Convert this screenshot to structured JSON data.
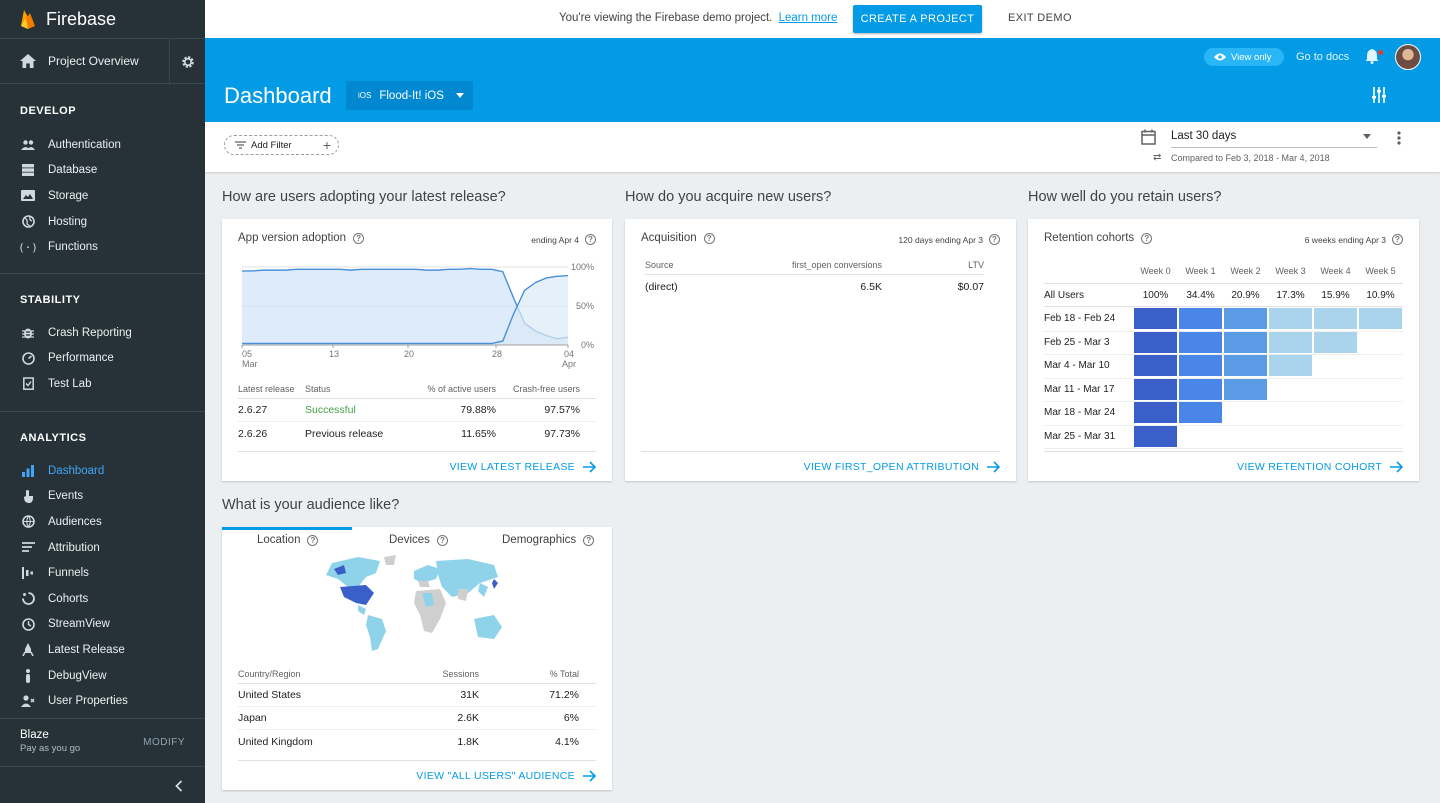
{
  "sidebar": {
    "brand": "Firebase",
    "project_overview": "Project Overview",
    "sections": {
      "develop": {
        "title": "DEVELOP",
        "items": [
          {
            "label": "Authentication",
            "icon": "people-icon"
          },
          {
            "label": "Database",
            "icon": "database-icon"
          },
          {
            "label": "Storage",
            "icon": "storage-icon"
          },
          {
            "label": "Hosting",
            "icon": "globe-icon"
          },
          {
            "label": "Functions",
            "icon": "functions-icon"
          }
        ]
      },
      "stability": {
        "title": "STABILITY",
        "items": [
          {
            "label": "Crash Reporting",
            "icon": "bug-icon"
          },
          {
            "label": "Performance",
            "icon": "gauge-icon"
          },
          {
            "label": "Test Lab",
            "icon": "checklist-icon"
          }
        ]
      },
      "analytics": {
        "title": "ANALYTICS",
        "items": [
          {
            "label": "Dashboard",
            "icon": "bar-chart-icon",
            "active": true
          },
          {
            "label": "Events",
            "icon": "touch-icon"
          },
          {
            "label": "Audiences",
            "icon": "globe-icon"
          },
          {
            "label": "Attribution",
            "icon": "attribution-icon"
          },
          {
            "label": "Funnels",
            "icon": "funnel-icon"
          },
          {
            "label": "Cohorts",
            "icon": "cohorts-icon"
          },
          {
            "label": "StreamView",
            "icon": "clock-icon"
          },
          {
            "label": "Latest Release",
            "icon": "release-icon"
          },
          {
            "label": "DebugView",
            "icon": "debug-icon"
          },
          {
            "label": "User Properties",
            "icon": "user-properties-icon"
          }
        ]
      }
    },
    "plan": {
      "name": "Blaze",
      "desc": "Pay as you go",
      "modify": "MODIFY"
    }
  },
  "banner": {
    "message": "You're viewing the Firebase demo project.",
    "learn_more": "Learn more",
    "create_project": "CREATE A PROJECT",
    "exit_demo": "EXIT DEMO"
  },
  "header": {
    "title": "Dashboard",
    "app_platform": "iOS",
    "app_name": "Flood-It! iOS",
    "view_only": "View only",
    "go_to_docs": "Go to docs"
  },
  "filter": {
    "add_filter": "Add Filter",
    "date_range": "Last 30 days",
    "compared": "Compared to Feb 3, 2018 - Mar 4, 2018"
  },
  "adoption": {
    "question": "How are users adopting your latest release?",
    "title": "App version adoption",
    "subtitle": "ending Apr 4",
    "chart_data": {
      "type": "area",
      "x_ticks": [
        [
          "05",
          "Mar"
        ],
        [
          "13",
          ""
        ],
        [
          "20",
          ""
        ],
        [
          "28",
          ""
        ],
        [
          "04",
          "Apr"
        ]
      ],
      "y_ticks": [
        "100%",
        "50%",
        "0%"
      ],
      "ylim": [
        0,
        100
      ],
      "series": [
        {
          "values": [
            95,
            95,
            96,
            96,
            96,
            97,
            97,
            97,
            97,
            97,
            96,
            97,
            97,
            97,
            97,
            97,
            97,
            96,
            96,
            97,
            97,
            98,
            97,
            97,
            94,
            60,
            28,
            18,
            12,
            8,
            10
          ]
        },
        {
          "values": [
            2,
            2,
            2,
            2,
            2,
            2,
            2,
            2,
            2,
            2,
            2,
            2,
            2,
            2,
            2,
            2,
            2,
            2,
            2,
            2,
            2,
            2,
            2,
            2,
            5,
            40,
            70,
            80,
            86,
            88,
            89
          ]
        }
      ]
    },
    "table": {
      "headers": [
        "Latest release",
        "Status",
        "% of active users",
        "Crash-free users"
      ],
      "rows": [
        {
          "release": "2.6.27",
          "status": "Successful",
          "active": "79.88%",
          "crash_free": "97.57%"
        },
        {
          "release": "2.6.26",
          "status": "Previous release",
          "active": "11.65%",
          "crash_free": "97.73%"
        }
      ]
    },
    "footer": "VIEW LATEST RELEASE"
  },
  "acquisition": {
    "question": "How do you acquire new users?",
    "title": "Acquisition",
    "subtitle": "120 days ending Apr 3",
    "table": {
      "headers": [
        "Source",
        "first_open conversions",
        "LTV"
      ],
      "rows": [
        {
          "source": "(direct)",
          "conversions": "6.5K",
          "ltv": "$0.07"
        }
      ]
    },
    "footer": "VIEW FIRST_OPEN ATTRIBUTION"
  },
  "retention": {
    "question": "How well do you retain users?",
    "title": "Retention cohorts",
    "subtitle": "6 weeks ending Apr 3",
    "weeks": [
      "Week 0",
      "Week 1",
      "Week 2",
      "Week 3",
      "Week 4",
      "Week 5"
    ],
    "all_users": {
      "label": "All Users",
      "values": [
        "100%",
        "34.4%",
        "20.9%",
        "17.3%",
        "15.9%",
        "10.9%"
      ]
    },
    "cohorts": [
      {
        "label": "Feb 18 - Feb 24",
        "cells": 6
      },
      {
        "label": "Feb 25 - Mar 3",
        "cells": 5
      },
      {
        "label": "Mar 4 - Mar 10",
        "cells": 4
      },
      {
        "label": "Mar 11 - Mar 17",
        "cells": 3
      },
      {
        "label": "Mar 18 - Mar 24",
        "cells": 2
      },
      {
        "label": "Mar 25 - Mar 31",
        "cells": 1
      }
    ],
    "colors": [
      "#3b5fc8",
      "#4a86e8",
      "#5b9be6",
      "#a9d4ec",
      "#a9d4ec",
      "#a9d4ec"
    ],
    "footer": "VIEW RETENTION COHORT"
  },
  "audience": {
    "question": "What is your audience like?",
    "tabs": [
      "Location",
      "Devices",
      "Demographics"
    ],
    "table": {
      "headers": [
        "Country/Region",
        "Sessions",
        "% Total"
      ],
      "rows": [
        {
          "country": "United States",
          "sessions": "31K",
          "total": "71.2%"
        },
        {
          "country": "Japan",
          "sessions": "2.6K",
          "total": "6%"
        },
        {
          "country": "United Kingdom",
          "sessions": "1.8K",
          "total": "4.1%"
        }
      ]
    },
    "footer": "VIEW \"ALL USERS\" AUDIENCE"
  }
}
